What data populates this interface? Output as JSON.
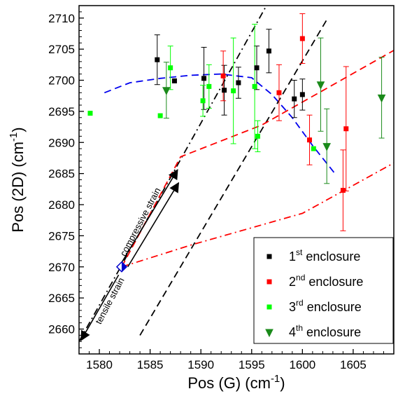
{
  "chart_data": {
    "type": "scatter",
    "xlabel": "Pos (G) (cm",
    "xlabel_sup": "-1",
    "xlabel_end": ")",
    "ylabel": "Pos (2D) (cm",
    "ylabel_sup": "-1",
    "ylabel_end": ")",
    "xlim": [
      1578,
      1609
    ],
    "ylim": [
      2656,
      2712
    ],
    "x_ticks": [
      1580,
      1585,
      1590,
      1595,
      1600,
      1605
    ],
    "y_ticks": [
      2660,
      2665,
      2670,
      2675,
      2680,
      2685,
      2690,
      2695,
      2700,
      2705,
      2710
    ],
    "legend_position": "bottom-right",
    "series": [
      {
        "name": "1",
        "name_sup": "st",
        "name_rest": " enclosure",
        "color": "#000000",
        "marker": "square",
        "points": [
          {
            "x": 1585.7,
            "y": 2703.3,
            "err": 4.0
          },
          {
            "x": 1587.4,
            "y": 2699.9,
            "err": 0
          },
          {
            "x": 1590.3,
            "y": 2700.3,
            "err": 5.0
          },
          {
            "x": 1592.3,
            "y": 2698.4,
            "err": 4.0
          },
          {
            "x": 1593.7,
            "y": 2699.6,
            "err": 2.5
          },
          {
            "x": 1595.5,
            "y": 2702.0,
            "err": 3.5
          },
          {
            "x": 1596.7,
            "y": 2704.7,
            "err": 3.5
          },
          {
            "x": 1599.2,
            "y": 2697.0,
            "err": 3.0
          },
          {
            "x": 1600.0,
            "y": 2697.7,
            "err": 2.5
          }
        ]
      },
      {
        "name": "2",
        "name_sup": "nd",
        "name_rest": " enclosure",
        "color": "#ff0000",
        "marker": "square",
        "points": [
          {
            "x": 1592.2,
            "y": 2700.7,
            "err": 4.0
          },
          {
            "x": 1597.7,
            "y": 2698.0,
            "err": 4.5
          },
          {
            "x": 1600.0,
            "y": 2706.7,
            "err": 4.0
          },
          {
            "x": 1600.7,
            "y": 2690.4,
            "err": 4.0
          },
          {
            "x": 1604.0,
            "y": 2682.3,
            "err": 6.5
          },
          {
            "x": 1604.3,
            "y": 2692.2,
            "err": 10.0
          }
        ]
      },
      {
        "name": "3",
        "name_sup": "rd",
        "name_rest": " enclosure",
        "color": "#00ff00",
        "marker": "square",
        "points": [
          {
            "x": 1579.1,
            "y": 2694.7,
            "err": 0
          },
          {
            "x": 1586.0,
            "y": 2694.3,
            "err": 0
          },
          {
            "x": 1587.0,
            "y": 2702.0,
            "err": 3.5
          },
          {
            "x": 1590.2,
            "y": 2696.7,
            "err": 2.5
          },
          {
            "x": 1590.8,
            "y": 2699.0,
            "err": 3.5
          },
          {
            "x": 1593.2,
            "y": 2698.3,
            "err": 8.5
          },
          {
            "x": 1595.3,
            "y": 2699.0,
            "err": 10.0
          },
          {
            "x": 1595.6,
            "y": 2691.0,
            "err": 2.5
          },
          {
            "x": 1601.1,
            "y": 2689.0,
            "err": 0
          }
        ]
      },
      {
        "name": "4",
        "name_sup": "th",
        "name_rest": " enclosure",
        "color": "#1a8a1a",
        "marker": "triangle-down",
        "points": [
          {
            "x": 1586.6,
            "y": 2698.4,
            "err": 4.5
          },
          {
            "x": 1601.8,
            "y": 2699.3,
            "err": 7.5
          },
          {
            "x": 1602.4,
            "y": 2689.4,
            "err": 6.0
          },
          {
            "x": 1607.8,
            "y": 2697.2,
            "err": 6.5
          }
        ]
      }
    ],
    "lines": [
      {
        "color": "#0000ee",
        "style": "dashed",
        "x": [
          1580.5,
          1583,
          1586,
          1589,
          1592,
          1595,
          1597,
          1599,
          1601,
          1603.2
        ],
        "y": [
          2698.0,
          2699.6,
          2700.3,
          2700.8,
          2701.0,
          2700.4,
          2697.7,
          2694.0,
          2689.5,
          2685.0
        ]
      },
      {
        "color": "#000000",
        "style": "dashed",
        "x": [
          1584,
          1602.5
        ],
        "y": [
          2659,
          2710
        ]
      },
      {
        "color": "#000000",
        "style": "dashdot",
        "x": [
          1578,
          1596.8
        ],
        "y": [
          2658,
          2713
        ]
      },
      {
        "color": "#ff0000",
        "style": "dashed",
        "x": [
          1582.2,
          1588,
          1596,
          1609
        ],
        "y": [
          2670.0,
          2687.7,
          2692.8,
          2704.8
        ]
      },
      {
        "color": "#ff0000",
        "style": "dashdot",
        "x": [
          1582.2,
          1589,
          1600,
          1609
        ],
        "y": [
          2670.0,
          2673.5,
          2678.6,
          2686.7
        ]
      }
    ],
    "highlight_point": {
      "x": 1582.2,
      "y": 2670.0
    },
    "annotations": [
      {
        "text": "compressive strain",
        "x": 1584.3,
        "y": 2677.0,
        "angle_deg": -62
      },
      {
        "text": "tensile strain",
        "x": 1581.3,
        "y": 2664.3,
        "angle_deg": -62
      }
    ],
    "arrows": [
      {
        "from": {
          "x": 1582.2,
          "y": 2670.7
        },
        "to": {
          "x": 1587.7,
          "y": 2685.6
        }
      },
      {
        "from": {
          "x": 1582.8,
          "y": 2670.0
        },
        "to": {
          "x": 1587.8,
          "y": 2683.5
        }
      },
      {
        "from": {
          "x": 1581.9,
          "y": 2668.7
        },
        "to": {
          "x": 1578.2,
          "y": 2658.2
        }
      }
    ]
  }
}
